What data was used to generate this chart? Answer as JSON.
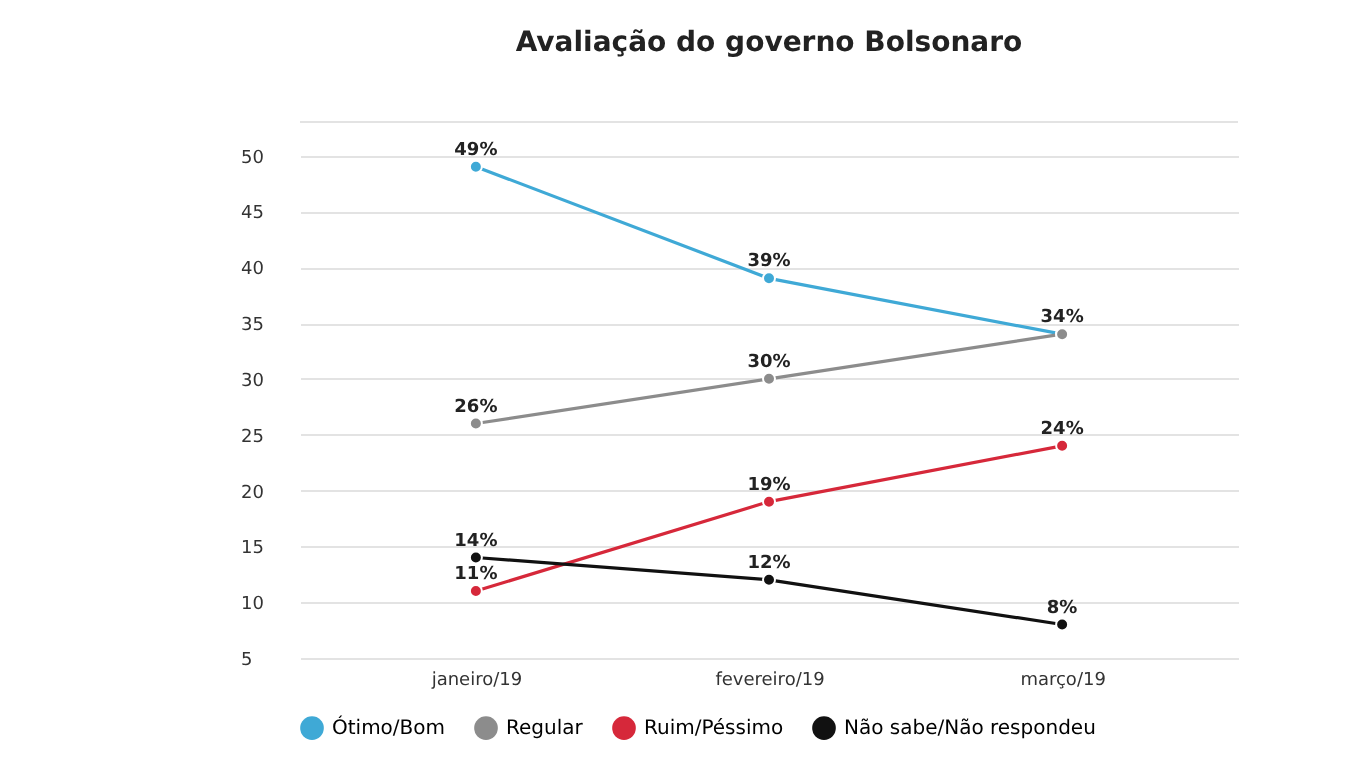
{
  "chart_data": {
    "type": "line",
    "title": "Avaliação do governo Bolsonaro",
    "categories": [
      "janeiro/19",
      "fevereiro/19",
      "março/19"
    ],
    "series": [
      {
        "name": "Ótimo/Bom",
        "color": "#3fa9d6",
        "values": [
          49,
          39,
          34
        ],
        "value_labels": [
          "49%",
          "39%",
          "34%"
        ]
      },
      {
        "name": "Regular",
        "color": "#8c8c8c",
        "values": [
          26,
          30,
          34
        ],
        "value_labels": [
          "26%",
          "30%",
          null
        ]
      },
      {
        "name": "Ruim/Péssimo",
        "color": "#d6283a",
        "values": [
          11,
          19,
          24
        ],
        "value_labels": [
          "11%",
          "19%",
          "24%"
        ]
      },
      {
        "name": "Não sabe/Não respondeu",
        "color": "#111111",
        "values": [
          14,
          12,
          8
        ],
        "value_labels": [
          "14%",
          "12%",
          "8%"
        ]
      }
    ],
    "ylim": [
      5,
      53
    ],
    "yticks": [
      5,
      10,
      15,
      20,
      25,
      30,
      35,
      40,
      45,
      50
    ],
    "grid": "y",
    "legend": "bottom",
    "marker": "circle",
    "line_style": "solid"
  }
}
